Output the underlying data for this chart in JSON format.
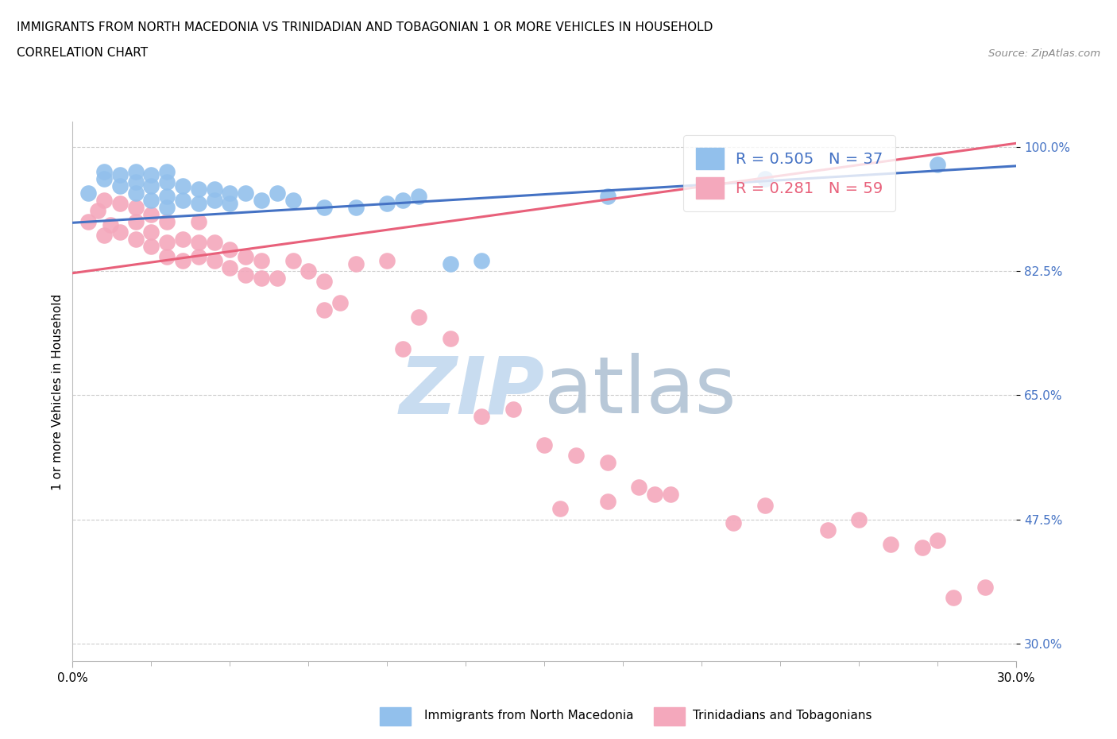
{
  "title_line1": "IMMIGRANTS FROM NORTH MACEDONIA VS TRINIDADIAN AND TOBAGONIAN 1 OR MORE VEHICLES IN HOUSEHOLD",
  "title_line2": "CORRELATION CHART",
  "source_text": "Source: ZipAtlas.com",
  "ylabel": "1 or more Vehicles in Household",
  "xlim": [
    0.0,
    0.3
  ],
  "ylim": [
    0.275,
    1.035
  ],
  "yticks": [
    0.3,
    0.475,
    0.65,
    0.825,
    1.0
  ],
  "ytick_labels": [
    "30.0%",
    "47.5%",
    "65.0%",
    "82.5%",
    "100.0%"
  ],
  "xtick_left_label": "0.0%",
  "xtick_right_label": "30.0%",
  "blue_R": 0.505,
  "blue_N": 37,
  "pink_R": 0.281,
  "pink_N": 59,
  "blue_color": "#92C0EC",
  "pink_color": "#F4A8BC",
  "blue_line_color": "#4472C4",
  "pink_line_color": "#E8607A",
  "legend_label_blue": "Immigrants from North Macedonia",
  "legend_label_pink": "Trinidadians and Tobagonians",
  "watermark_color": "#C8DCF0",
  "blue_line_x": [
    0.0,
    0.3
  ],
  "blue_line_y": [
    0.893,
    0.973
  ],
  "pink_line_x": [
    0.0,
    0.3
  ],
  "pink_line_y": [
    0.822,
    1.005
  ],
  "blue_scatter_x": [
    0.005,
    0.01,
    0.01,
    0.015,
    0.015,
    0.02,
    0.02,
    0.02,
    0.025,
    0.025,
    0.025,
    0.03,
    0.03,
    0.03,
    0.03,
    0.035,
    0.035,
    0.04,
    0.04,
    0.045,
    0.045,
    0.05,
    0.05,
    0.055,
    0.06,
    0.065,
    0.07,
    0.08,
    0.09,
    0.1,
    0.105,
    0.11,
    0.12,
    0.13,
    0.17,
    0.22,
    0.275
  ],
  "blue_scatter_y": [
    0.935,
    0.955,
    0.965,
    0.945,
    0.96,
    0.935,
    0.95,
    0.965,
    0.925,
    0.945,
    0.96,
    0.915,
    0.93,
    0.95,
    0.965,
    0.925,
    0.945,
    0.92,
    0.94,
    0.925,
    0.94,
    0.92,
    0.935,
    0.935,
    0.925,
    0.935,
    0.925,
    0.915,
    0.915,
    0.92,
    0.925,
    0.93,
    0.835,
    0.84,
    0.93,
    0.955,
    0.975
  ],
  "pink_scatter_x": [
    0.005,
    0.008,
    0.01,
    0.01,
    0.012,
    0.015,
    0.015,
    0.02,
    0.02,
    0.02,
    0.025,
    0.025,
    0.025,
    0.03,
    0.03,
    0.03,
    0.035,
    0.035,
    0.04,
    0.04,
    0.04,
    0.045,
    0.045,
    0.05,
    0.05,
    0.055,
    0.055,
    0.06,
    0.06,
    0.065,
    0.07,
    0.075,
    0.08,
    0.08,
    0.085,
    0.09,
    0.1,
    0.105,
    0.11,
    0.12,
    0.13,
    0.14,
    0.15,
    0.16,
    0.17,
    0.18,
    0.19,
    0.22,
    0.24,
    0.25,
    0.26,
    0.27,
    0.275,
    0.28,
    0.29,
    0.155,
    0.17,
    0.185,
    0.21
  ],
  "pink_scatter_y": [
    0.895,
    0.91,
    0.875,
    0.925,
    0.89,
    0.88,
    0.92,
    0.87,
    0.895,
    0.915,
    0.86,
    0.88,
    0.905,
    0.845,
    0.865,
    0.895,
    0.84,
    0.87,
    0.845,
    0.865,
    0.895,
    0.84,
    0.865,
    0.83,
    0.855,
    0.82,
    0.845,
    0.815,
    0.84,
    0.815,
    0.84,
    0.825,
    0.77,
    0.81,
    0.78,
    0.835,
    0.84,
    0.715,
    0.76,
    0.73,
    0.62,
    0.63,
    0.58,
    0.565,
    0.555,
    0.52,
    0.51,
    0.495,
    0.46,
    0.475,
    0.44,
    0.435,
    0.445,
    0.365,
    0.38,
    0.49,
    0.5,
    0.51,
    0.47
  ]
}
